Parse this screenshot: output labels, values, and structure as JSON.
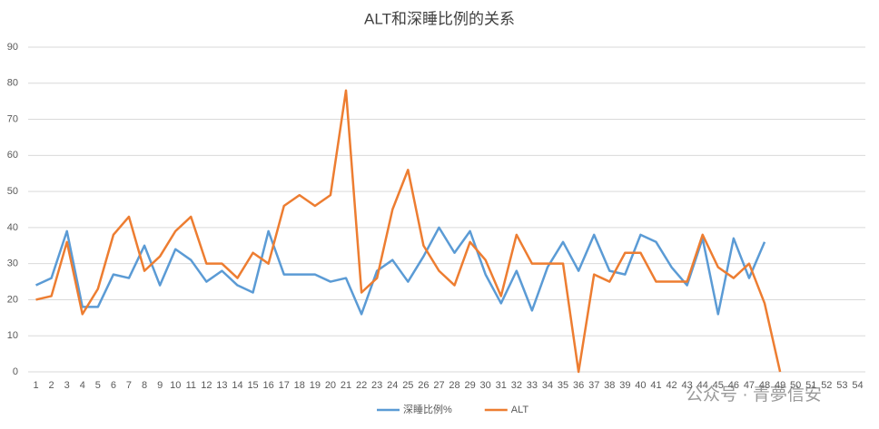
{
  "chart_data": {
    "type": "line",
    "title": "ALT和深睡比例的关系",
    "categories": [
      1,
      2,
      3,
      4,
      5,
      6,
      7,
      8,
      9,
      10,
      11,
      12,
      13,
      14,
      15,
      16,
      17,
      18,
      19,
      20,
      21,
      22,
      23,
      24,
      25,
      26,
      27,
      28,
      29,
      30,
      31,
      32,
      33,
      34,
      35,
      36,
      37,
      38,
      39,
      40,
      41,
      42,
      43,
      44,
      45,
      46,
      47,
      48,
      49,
      50,
      51,
      52,
      53,
      54
    ],
    "series": [
      {
        "name": "深睡比例%",
        "color": "#5b9bd5",
        "values": [
          24,
          26,
          39,
          18,
          18,
          27,
          26,
          35,
          24,
          34,
          31,
          25,
          28,
          24,
          22,
          39,
          27,
          27,
          27,
          25,
          26,
          16,
          28,
          31,
          25,
          32,
          40,
          33,
          39,
          27,
          19,
          28,
          17,
          29,
          36,
          28,
          38,
          28,
          27,
          38,
          36,
          29,
          24,
          37,
          16,
          37,
          26,
          36,
          null,
          null,
          null,
          null,
          null,
          null
        ]
      },
      {
        "name": "ALT",
        "color": "#ed7d31",
        "values": [
          20,
          21,
          36,
          16,
          23,
          38,
          43,
          28,
          32,
          39,
          43,
          30,
          30,
          26,
          33,
          30,
          46,
          49,
          46,
          49,
          78,
          22,
          26,
          45,
          56,
          35,
          28,
          24,
          36,
          31,
          21,
          38,
          30,
          30,
          30,
          0,
          27,
          25,
          33,
          33,
          25,
          25,
          25,
          38,
          29,
          26,
          30,
          19,
          0,
          null,
          null,
          null,
          null,
          null
        ]
      }
    ],
    "ylim": [
      0,
      90
    ],
    "yticks": [
      0,
      10,
      20,
      30,
      40,
      50,
      60,
      70,
      80,
      90
    ],
    "grid": true,
    "legend": "bottom",
    "watermark": "公众号 · 青夢信安"
  }
}
